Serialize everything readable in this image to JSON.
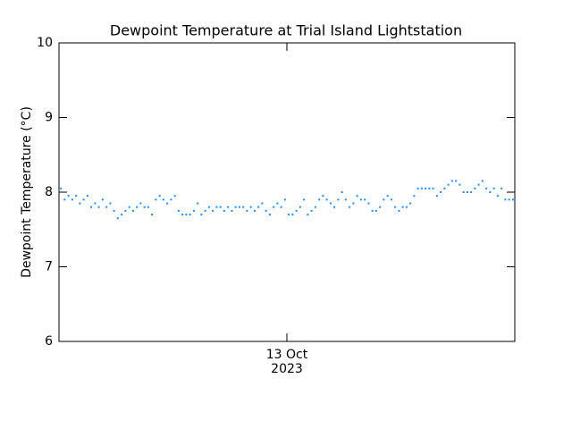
{
  "chart_data": {
    "type": "scatter",
    "title": "Dewpoint Temperature at Trial Island Lightstation",
    "ylabel": "Dewpoint Temperature (°C)",
    "color": "#1a8cff",
    "xlim": [
      -12,
      12
    ],
    "xticks": [
      {
        "value": 0,
        "label": "13 Oct\n2023"
      }
    ],
    "ylim": [
      6,
      10
    ],
    "yticks": [
      6,
      7,
      8,
      9,
      10
    ],
    "series": [
      {
        "x": [
          -11.9,
          -11.7,
          -11.5,
          -11.3,
          -11.1,
          -10.9,
          -10.7,
          -10.5,
          -10.3,
          -10.1,
          -9.9,
          -9.7,
          -9.5,
          -9.3,
          -9.1,
          -8.9,
          -8.7,
          -8.5,
          -8.3,
          -8.1,
          -7.9,
          -7.7,
          -7.5,
          -7.3,
          -7.1,
          -6.9,
          -6.7,
          -6.5,
          -6.3,
          -6.1,
          -5.9,
          -5.7,
          -5.5,
          -5.3,
          -5.1,
          -4.9,
          -4.7,
          -4.5,
          -4.3,
          -4.1,
          -3.9,
          -3.7,
          -3.5,
          -3.3,
          -3.1,
          -2.9,
          -2.7,
          -2.5,
          -2.3,
          -2.1,
          -1.9,
          -1.7,
          -1.5,
          -1.3,
          -1.1,
          -0.9,
          -0.7,
          -0.5,
          -0.3,
          -0.1,
          0.1,
          0.3,
          0.5,
          0.7,
          0.9,
          1.1,
          1.3,
          1.5,
          1.7,
          1.9,
          2.1,
          2.3,
          2.5,
          2.7,
          2.9,
          3.1,
          3.3,
          3.5,
          3.7,
          3.9,
          4.1,
          4.3,
          4.5,
          4.7,
          4.9,
          5.1,
          5.3,
          5.5,
          5.7,
          5.9,
          6.1,
          6.3,
          6.5,
          6.7,
          6.9,
          7.1,
          7.3,
          7.5,
          7.7,
          7.9,
          8.1,
          8.3,
          8.5,
          8.7,
          8.9,
          9.1,
          9.3,
          9.5,
          9.7,
          9.9,
          10.1,
          10.3,
          10.5,
          10.7,
          10.9,
          11.1,
          11.3,
          11.5,
          11.7,
          11.9
        ],
        "values": [
          8.05,
          7.9,
          7.95,
          7.9,
          7.95,
          7.85,
          7.9,
          7.95,
          7.8,
          7.85,
          7.8,
          7.9,
          7.8,
          7.85,
          7.75,
          7.65,
          7.7,
          7.75,
          7.8,
          7.75,
          7.8,
          7.85,
          7.8,
          7.8,
          7.7,
          7.9,
          7.95,
          7.9,
          7.85,
          7.9,
          7.95,
          7.75,
          7.7,
          7.7,
          7.7,
          7.75,
          7.85,
          7.7,
          7.75,
          7.8,
          7.75,
          7.8,
          7.8,
          7.75,
          7.8,
          7.75,
          7.8,
          7.8,
          7.8,
          7.75,
          7.8,
          7.75,
          7.8,
          7.85,
          7.75,
          7.7,
          7.8,
          7.85,
          7.8,
          7.9,
          7.7,
          7.7,
          7.75,
          7.8,
          7.9,
          7.7,
          7.75,
          7.8,
          7.9,
          7.95,
          7.9,
          7.85,
          7.8,
          7.9,
          8.0,
          7.9,
          7.8,
          7.85,
          7.95,
          7.9,
          7.9,
          7.85,
          7.75,
          7.75,
          7.8,
          7.9,
          7.95,
          7.9,
          7.8,
          7.75,
          7.8,
          7.8,
          7.85,
          7.95,
          8.05,
          8.05,
          8.05,
          8.05,
          8.05,
          7.95,
          8.0,
          8.05,
          8.1,
          8.15,
          8.15,
          8.1,
          8.0,
          8.0,
          8.0,
          8.05,
          8.1,
          8.15,
          8.05,
          8.0,
          8.05,
          7.95,
          8.05,
          7.9,
          7.9,
          7.9
        ]
      }
    ]
  }
}
